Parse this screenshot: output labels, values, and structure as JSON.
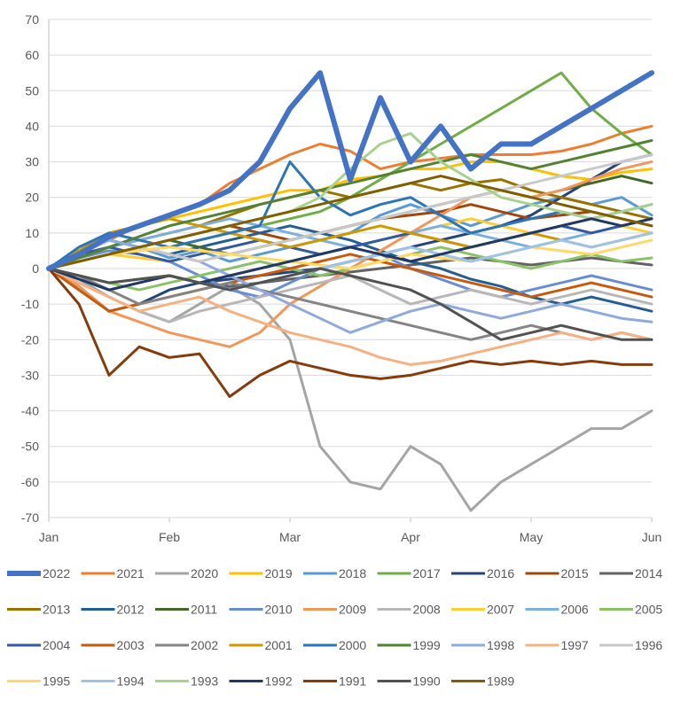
{
  "chart_data": {
    "type": "line",
    "title": "",
    "xlabel": "",
    "ylabel": "",
    "ylim": [
      -70,
      70
    ],
    "xlim": [
      0,
      5
    ],
    "grid": "horizontal",
    "legend_placement": "bottom",
    "y_ticks": [
      70,
      60,
      50,
      40,
      30,
      20,
      10,
      0,
      -10,
      -20,
      -30,
      -40,
      -50,
      -60,
      -70
    ],
    "x_tick_labels": [
      "Jan",
      "Feb",
      "Mar",
      "Apr",
      "May",
      "Jun"
    ],
    "x_tick_values": [
      0,
      1,
      2,
      3,
      4,
      5
    ],
    "x": [
      0,
      0.25,
      0.5,
      0.75,
      1,
      1.25,
      1.5,
      1.75,
      2,
      2.25,
      2.5,
      2.75,
      3,
      3.25,
      3.5,
      3.75,
      4,
      4.25,
      4.5,
      4.75,
      5
    ],
    "series": [
      {
        "name": "2022",
        "color": "#4472C4",
        "width": 6,
        "values": [
          0,
          4,
          9,
          12,
          15,
          18,
          22,
          30,
          45,
          55,
          25,
          48,
          30,
          40,
          28,
          35,
          35,
          40,
          45,
          50,
          55
        ]
      },
      {
        "name": "2021",
        "color": "#ED7D31",
        "width": 3,
        "values": [
          0,
          5,
          8,
          12,
          15,
          18,
          24,
          28,
          32,
          35,
          33,
          28,
          30,
          31,
          32,
          32,
          32,
          33,
          35,
          38,
          40
        ]
      },
      {
        "name": "2020",
        "color": "#A5A5A5",
        "width": 3,
        "values": [
          0,
          -3,
          -8,
          -12,
          -15,
          -10,
          -5,
          -10,
          -20,
          -50,
          -60,
          -62,
          -50,
          -55,
          -68,
          -60,
          -55,
          -50,
          -45,
          -45,
          -40
        ]
      },
      {
        "name": "2019",
        "color": "#FFC000",
        "width": 3,
        "values": [
          0,
          5,
          10,
          12,
          14,
          16,
          18,
          20,
          22,
          22,
          25,
          26,
          28,
          28,
          30,
          30,
          28,
          26,
          25,
          27,
          28
        ]
      },
      {
        "name": "2018",
        "color": "#5B9BD5",
        "width": 3,
        "values": [
          0,
          4,
          8,
          6,
          3,
          5,
          2,
          4,
          6,
          8,
          10,
          15,
          18,
          15,
          12,
          15,
          18,
          20,
          18,
          20,
          15
        ]
      },
      {
        "name": "2017",
        "color": "#70AD47",
        "width": 3,
        "values": [
          0,
          2,
          4,
          5,
          6,
          8,
          10,
          12,
          14,
          16,
          20,
          25,
          30,
          35,
          40,
          45,
          50,
          55,
          45,
          38,
          32
        ]
      },
      {
        "name": "2016",
        "color": "#264478",
        "width": 3,
        "values": [
          0,
          -5,
          -12,
          -10,
          -6,
          -4,
          -3,
          -2,
          -1,
          0,
          2,
          4,
          6,
          8,
          10,
          12,
          15,
          20,
          25,
          30,
          32
        ]
      },
      {
        "name": "2015",
        "color": "#9E480E",
        "width": 3,
        "values": [
          0,
          2,
          4,
          6,
          8,
          10,
          12,
          10,
          8,
          10,
          12,
          14,
          15,
          16,
          18,
          16,
          14,
          15,
          16,
          14,
          12
        ]
      },
      {
        "name": "2014",
        "color": "#636363",
        "width": 3,
        "values": [
          0,
          -2,
          -4,
          -3,
          -2,
          -4,
          -5,
          -4,
          -3,
          -2,
          -1,
          0,
          1,
          2,
          3,
          2,
          1,
          2,
          3,
          2,
          1
        ]
      },
      {
        "name": "2013",
        "color": "#997300",
        "width": 3,
        "values": [
          0,
          3,
          6,
          8,
          10,
          12,
          15,
          18,
          20,
          22,
          20,
          22,
          24,
          22,
          24,
          25,
          22,
          20,
          18,
          16,
          14
        ]
      },
      {
        "name": "2012",
        "color": "#255E91",
        "width": 3,
        "values": [
          0,
          5,
          8,
          6,
          4,
          6,
          8,
          10,
          12,
          10,
          8,
          5,
          2,
          0,
          -3,
          -5,
          -8,
          -10,
          -8,
          -10,
          -12
        ]
      },
      {
        "name": "2011",
        "color": "#43682B",
        "width": 3,
        "values": [
          0,
          2,
          4,
          6,
          8,
          6,
          4,
          6,
          8,
          10,
          12,
          14,
          16,
          18,
          20,
          22,
          20,
          22,
          24,
          26,
          24
        ]
      },
      {
        "name": "2010",
        "color": "#698ED0",
        "width": 3,
        "values": [
          0,
          3,
          5,
          4,
          2,
          -2,
          -6,
          -8,
          -4,
          0,
          2,
          4,
          0,
          -3,
          -6,
          -8,
          -6,
          -4,
          -2,
          -4,
          -6
        ]
      },
      {
        "name": "2009",
        "color": "#F1975A",
        "width": 3,
        "values": [
          0,
          -5,
          -12,
          -15,
          -18,
          -20,
          -22,
          -18,
          -10,
          -5,
          0,
          5,
          10,
          15,
          20,
          22,
          20,
          22,
          25,
          28,
          30
        ]
      },
      {
        "name": "2008",
        "color": "#B7B7B7",
        "width": 3,
        "values": [
          0,
          -4,
          -8,
          -12,
          -15,
          -12,
          -10,
          -8,
          -6,
          -4,
          -2,
          -6,
          -10,
          -8,
          -6,
          -8,
          -10,
          -8,
          -6,
          -8,
          -10
        ]
      },
      {
        "name": "2007",
        "color": "#FFCD33",
        "width": 3,
        "values": [
          0,
          2,
          4,
          3,
          2,
          4,
          6,
          8,
          6,
          4,
          6,
          8,
          10,
          12,
          14,
          12,
          10,
          12,
          14,
          12,
          10
        ]
      },
      {
        "name": "2006",
        "color": "#7CAFDD",
        "width": 3,
        "values": [
          0,
          3,
          6,
          8,
          10,
          12,
          14,
          12,
          10,
          8,
          6,
          8,
          10,
          12,
          10,
          8,
          6,
          8,
          10,
          12,
          14
        ]
      },
      {
        "name": "2005",
        "color": "#8CC168",
        "width": 3,
        "values": [
          0,
          -2,
          -4,
          -6,
          -4,
          -2,
          0,
          2,
          0,
          -2,
          0,
          2,
          4,
          6,
          4,
          2,
          0,
          2,
          4,
          2,
          3
        ]
      },
      {
        "name": "2004",
        "color": "#335AA1",
        "width": 3,
        "values": [
          0,
          4,
          6,
          4,
          2,
          4,
          6,
          8,
          6,
          4,
          6,
          8,
          10,
          8,
          6,
          8,
          10,
          12,
          10,
          12,
          14
        ]
      },
      {
        "name": "2003",
        "color": "#C55A11",
        "width": 3,
        "values": [
          0,
          -6,
          -12,
          -10,
          -8,
          -6,
          -4,
          -2,
          0,
          2,
          4,
          2,
          0,
          -2,
          -4,
          -6,
          -8,
          -6,
          -4,
          -6,
          -8
        ]
      },
      {
        "name": "2002",
        "color": "#848484",
        "width": 3,
        "values": [
          0,
          -2,
          -6,
          -10,
          -8,
          -6,
          -4,
          -6,
          -8,
          -10,
          -12,
          -14,
          -16,
          -18,
          -20,
          -18,
          -16,
          -18,
          -20,
          -18,
          -20
        ]
      },
      {
        "name": "2001",
        "color": "#CC9A00",
        "width": 3,
        "values": [
          0,
          5,
          10,
          12,
          14,
          12,
          10,
          8,
          6,
          8,
          10,
          12,
          10,
          8,
          6,
          8,
          10,
          8,
          6,
          8,
          10
        ]
      },
      {
        "name": "2000",
        "color": "#2E75B6",
        "width": 3,
        "values": [
          0,
          6,
          10,
          8,
          6,
          8,
          10,
          12,
          30,
          20,
          15,
          18,
          20,
          15,
          10,
          12,
          14,
          16,
          14,
          16,
          18
        ]
      },
      {
        "name": "1999",
        "color": "#548235",
        "width": 3,
        "values": [
          0,
          3,
          6,
          9,
          12,
          14,
          16,
          18,
          20,
          22,
          24,
          26,
          28,
          30,
          32,
          30,
          28,
          30,
          32,
          34,
          36
        ]
      },
      {
        "name": "1998",
        "color": "#8FAADC",
        "width": 3,
        "values": [
          0,
          4,
          8,
          6,
          4,
          2,
          -2,
          -6,
          -10,
          -14,
          -18,
          -15,
          -12,
          -10,
          -12,
          -14,
          -12,
          -10,
          -12,
          -14,
          -15
        ]
      },
      {
        "name": "1997",
        "color": "#F4B183",
        "width": 3,
        "values": [
          0,
          -4,
          -8,
          -12,
          -10,
          -8,
          -12,
          -15,
          -18,
          -20,
          -22,
          -25,
          -27,
          -26,
          -24,
          -22,
          -20,
          -18,
          -20,
          -18,
          -20
        ]
      },
      {
        "name": "1996",
        "color": "#C9C9C9",
        "width": 3,
        "values": [
          0,
          2,
          4,
          6,
          4,
          2,
          4,
          6,
          8,
          10,
          12,
          14,
          16,
          18,
          20,
          22,
          24,
          26,
          28,
          30,
          32
        ]
      },
      {
        "name": "1995",
        "color": "#FFD966",
        "width": 3,
        "values": [
          0,
          2,
          4,
          5,
          6,
          5,
          4,
          3,
          2,
          1,
          0,
          2,
          4,
          3,
          2,
          4,
          6,
          5,
          4,
          6,
          8
        ]
      },
      {
        "name": "1994",
        "color": "#9DC3E6",
        "width": 3,
        "values": [
          0,
          -3,
          -6,
          -4,
          -2,
          -4,
          -6,
          -4,
          -2,
          0,
          2,
          4,
          6,
          4,
          2,
          4,
          6,
          8,
          6,
          8,
          10
        ]
      },
      {
        "name": "1993",
        "color": "#A9D18E",
        "width": 3,
        "values": [
          0,
          2,
          4,
          6,
          8,
          10,
          12,
          14,
          16,
          20,
          28,
          35,
          38,
          30,
          25,
          20,
          18,
          16,
          14,
          16,
          18
        ]
      },
      {
        "name": "1992",
        "color": "#203864",
        "width": 3,
        "values": [
          0,
          -3,
          -6,
          -4,
          -2,
          -4,
          -2,
          0,
          2,
          4,
          6,
          4,
          2,
          4,
          6,
          8,
          10,
          12,
          14,
          12,
          14
        ]
      },
      {
        "name": "1991",
        "color": "#843C0C",
        "width": 3,
        "values": [
          0,
          -10,
          -30,
          -22,
          -25,
          -24,
          -36,
          -30,
          -26,
          -28,
          -30,
          -31,
          -30,
          -28,
          -26,
          -27,
          -26,
          -27,
          -26,
          -27,
          -27
        ]
      },
      {
        "name": "1990",
        "color": "#525252",
        "width": 3,
        "values": [
          0,
          -2,
          -4,
          -3,
          -2,
          -4,
          -6,
          -4,
          -2,
          0,
          -2,
          -4,
          -6,
          -10,
          -15,
          -20,
          -18,
          -16,
          -18,
          -20,
          -20
        ]
      },
      {
        "name": "1989",
        "color": "#7F6000",
        "width": 3,
        "values": [
          0,
          2,
          4,
          6,
          8,
          10,
          12,
          14,
          16,
          18,
          20,
          22,
          24,
          26,
          24,
          22,
          20,
          18,
          16,
          14,
          12
        ]
      }
    ]
  }
}
